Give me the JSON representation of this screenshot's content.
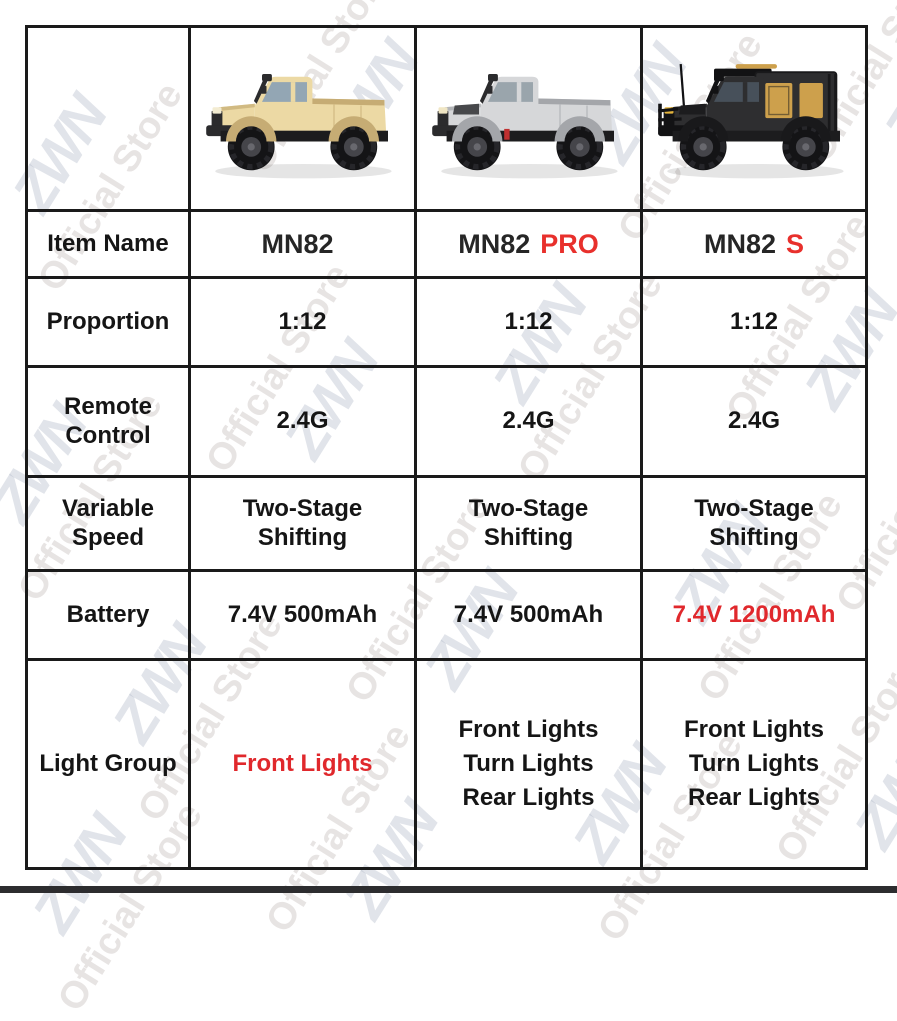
{
  "watermark": {
    "logo": "ZWN",
    "text": "Official Store"
  },
  "colors": {
    "accent_red": "#e0282c",
    "text": "#151515",
    "border": "#1a1a1a",
    "bottom_bar": "#2d2d2f"
  },
  "products": [
    {
      "base": "MN82",
      "suffix": "",
      "image": "tan-pickup-rc-truck",
      "truck": {
        "variant": "pickup",
        "body": "#ecd9a4",
        "shade": "#c6ac74",
        "window": "#93a6b4",
        "trim": "#2b2b2d",
        "hood": "",
        "accent": "",
        "light": "#f3ecd2"
      }
    },
    {
      "base": "MN82",
      "suffix": "PRO",
      "image": "silver-pickup-rc-truck",
      "truck": {
        "variant": "pickup-darkhood",
        "body": "#d6d7d9",
        "shade": "#a4a6aa",
        "window": "#9aa5ac",
        "trim": "#2b2b2d",
        "hood": "#47484b",
        "accent": "#c03030",
        "light": "#f0e6c4"
      }
    },
    {
      "base": "MN82",
      "suffix": "S",
      "image": "black-expedition-rc-truck",
      "truck": {
        "variant": "expedition",
        "body": "#2e2e30",
        "shade": "#19191b",
        "window": "#47505a",
        "trim": "#121214",
        "hood": "#1c1c1e",
        "accent": "#cda04c",
        "light": "#e4b43c"
      }
    }
  ],
  "item_row": {
    "label": "Item Name"
  },
  "specs": [
    {
      "label": "Proportion",
      "values": [
        "1:12",
        "1:12",
        "1:12"
      ],
      "red": [
        false,
        false,
        false
      ]
    },
    {
      "label": "Remote\nControl",
      "values": [
        "2.4G",
        "2.4G",
        "2.4G"
      ],
      "red": [
        false,
        false,
        false
      ]
    },
    {
      "label": "Variable\nSpeed",
      "values": [
        "Two-Stage\nShifting",
        "Two-Stage\nShifting",
        "Two-Stage\nShifting"
      ],
      "red": [
        false,
        false,
        false
      ]
    },
    {
      "label": "Battery",
      "values": [
        "7.4V 500mAh",
        "7.4V 500mAh",
        "7.4V 1200mAh"
      ],
      "red": [
        false,
        false,
        true
      ]
    },
    {
      "label": "Light Group",
      "values": [
        "Front Lights",
        "Front Lights\nTurn Lights\nRear Lights",
        "Front Lights\nTurn Lights\nRear Lights"
      ],
      "red": [
        true,
        false,
        false
      ]
    }
  ]
}
